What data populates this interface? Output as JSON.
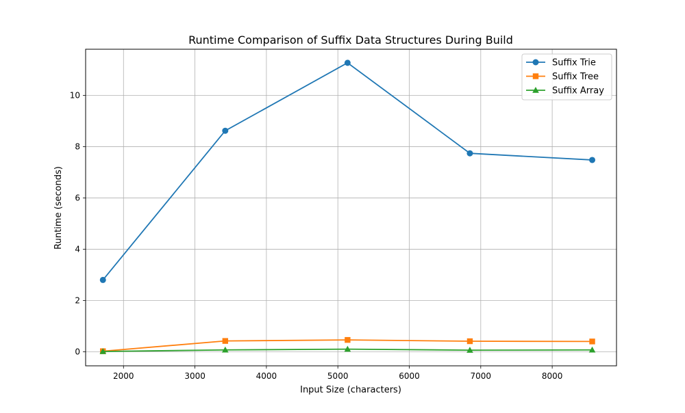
{
  "chart_data": {
    "type": "line",
    "title": "Runtime Comparison of Suffix Data Structures During Build",
    "xlabel": "Input Size (characters)",
    "ylabel": "Runtime (seconds)",
    "x": [
      1712,
      3424,
      5136,
      6848,
      8560
    ],
    "xlim": [
      1470,
      8900
    ],
    "ylim": [
      -0.55,
      11.8
    ],
    "xticks": [
      2000,
      3000,
      4000,
      5000,
      6000,
      7000,
      8000
    ],
    "yticks": [
      0,
      2,
      4,
      6,
      8,
      10
    ],
    "grid": true,
    "legend_position": "top-right",
    "series": [
      {
        "name": "Suffix Trie",
        "color": "#1f77b4",
        "marker": "circle",
        "values": [
          2.8,
          8.62,
          11.27,
          7.74,
          7.48
        ]
      },
      {
        "name": "Suffix Tree",
        "color": "#ff7f0e",
        "marker": "square",
        "values": [
          0.02,
          0.42,
          0.46,
          0.41,
          0.4
        ]
      },
      {
        "name": "Suffix Array",
        "color": "#2ca02c",
        "marker": "triangle",
        "values": [
          0.01,
          0.07,
          0.1,
          0.06,
          0.07
        ]
      }
    ]
  }
}
